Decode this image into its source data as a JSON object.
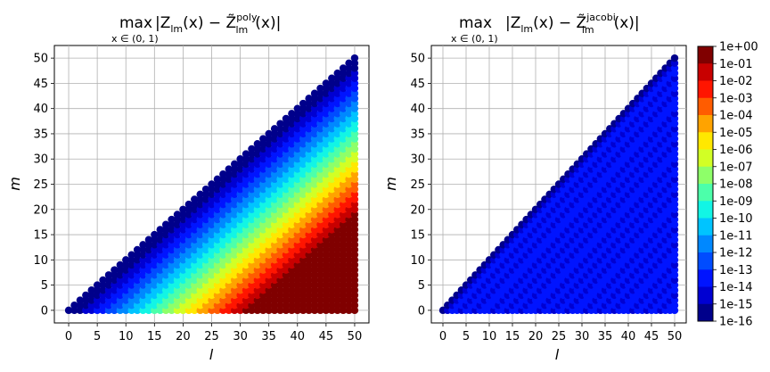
{
  "chart_data": [
    {
      "type": "scatter",
      "title_main": "max",
      "title_expr": "|Z",
      "title_sub_lm": "lm",
      "title_x": "(x) − Z̃",
      "title_sup": "poly",
      "title_lm2": "lm",
      "title_tail": "(x)|",
      "title_under": "x ∈ (0, 1)",
      "xlabel": "l",
      "ylabel": "m",
      "xlim": [
        -2.5,
        52.5
      ],
      "ylim": [
        -2.5,
        52.5
      ],
      "xticks": [
        "0",
        "5",
        "10",
        "15",
        "20",
        "25",
        "30",
        "35",
        "40",
        "45",
        "50"
      ],
      "yticks": [
        "0",
        "5",
        "10",
        "15",
        "20",
        "25",
        "30",
        "35",
        "40",
        "45",
        "50"
      ],
      "grid": true,
      "points": "all integer (l, m) with 0 ≤ m ≤ l ≤ 50",
      "value_model": "log10 error ≈ −16 + 0.5·(l − m), clipped to [−16, 0]; error grows with l − m"
    },
    {
      "type": "scatter",
      "title_main": "max",
      "title_expr": "|Z",
      "title_sub_lm": "lm",
      "title_x": "(x) − Z̃",
      "title_sup": "jacobi",
      "title_lm2": "lm",
      "title_tail": "(x)|",
      "title_under": "x ∈ (0, 1)",
      "xlabel": "l",
      "ylabel": "m",
      "xlim": [
        -2.5,
        52.5
      ],
      "ylim": [
        -2.5,
        52.5
      ],
      "xticks": [
        "0",
        "5",
        "10",
        "15",
        "20",
        "25",
        "30",
        "35",
        "40",
        "45",
        "50"
      ],
      "yticks": [
        "0",
        "5",
        "10",
        "15",
        "20",
        "25",
        "30",
        "35",
        "40",
        "45",
        "50"
      ],
      "grid": true,
      "points": "all integer (l, m) with 0 ≤ m ≤ l ≤ 50",
      "value_model": "log10 error ≈ −14 to −15 throughout, −16 along diagonal"
    }
  ],
  "colorbar": {
    "labels": [
      "1e+00",
      "1e-01",
      "1e-02",
      "1e-03",
      "1e-04",
      "1e-05",
      "1e-06",
      "1e-07",
      "1e-08",
      "1e-09",
      "1e-10",
      "1e-11",
      "1e-12",
      "1e-13",
      "1e-14",
      "1e-15",
      "1e-16"
    ],
    "colors": [
      "#800000",
      "#c80000",
      "#ff1500",
      "#ff5c00",
      "#ffa300",
      "#ffe800",
      "#d2ff25",
      "#8eff69",
      "#4cffaa",
      "#12f5e5",
      "#00c4ff",
      "#0088ff",
      "#004cff",
      "#0014ff",
      "#0000d2",
      "#00008b"
    ]
  }
}
